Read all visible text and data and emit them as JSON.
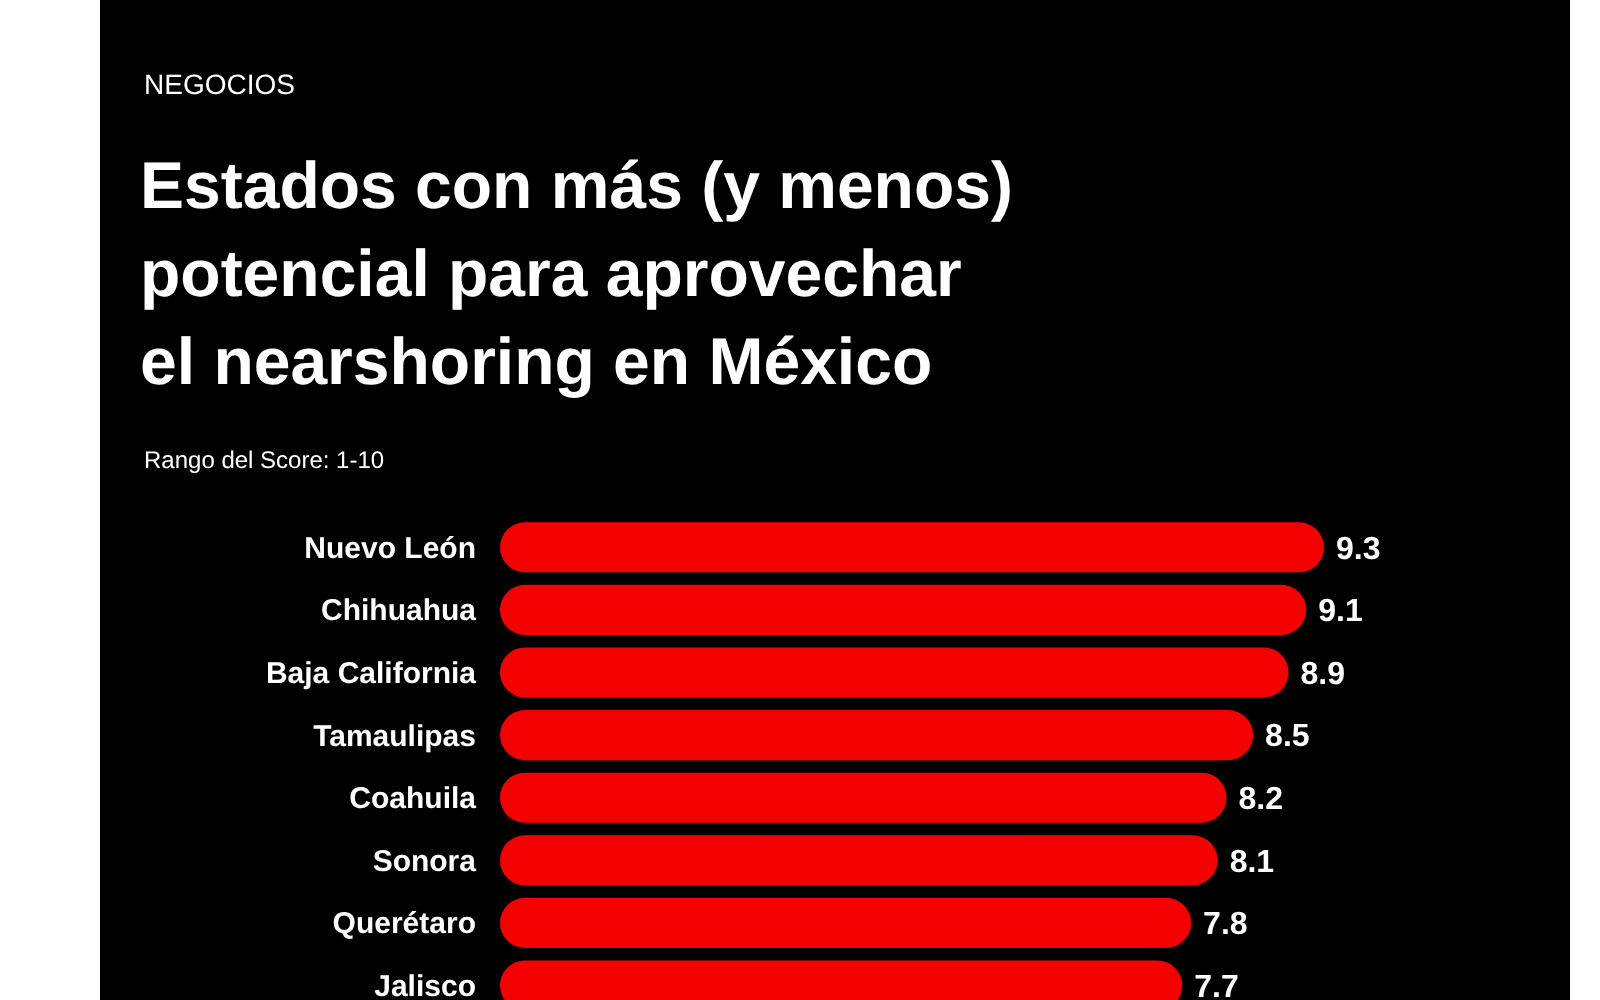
{
  "chart_data": {
    "type": "bar",
    "orientation": "horizontal",
    "title": "Estados con más (y menos)\npotencial para aprovechar\nel nearshoring en México",
    "subtitle": "Rango del Score: 1-10",
    "annotations": [
      "NEGOCIOS"
    ],
    "categories": [
      "Nuevo León",
      "Chihuahua",
      "Baja California",
      "Tamaulipas",
      "Coahuila",
      "Sonora",
      "Querétaro",
      "Jalisco"
    ],
    "values": [
      9.3,
      9.1,
      8.9,
      8.5,
      8.2,
      8.1,
      7.8,
      7.7
    ],
    "color": "#f50000",
    "data_labels": true
  }
}
